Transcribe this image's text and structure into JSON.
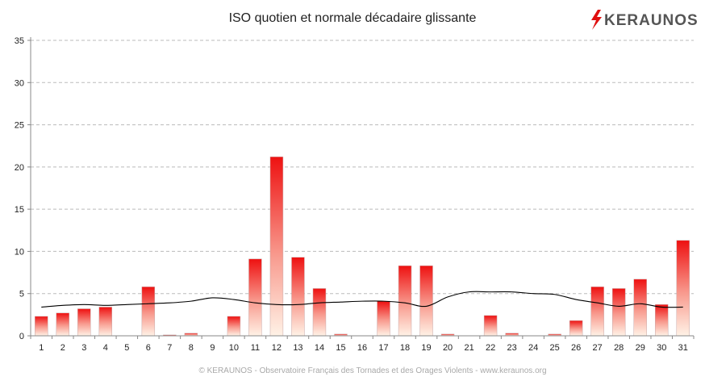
{
  "chart_data": {
    "type": "bar",
    "title": "ISO quotien et normale décadaire glissante",
    "xlabel": "",
    "ylabel": "",
    "categories": [
      "1",
      "2",
      "3",
      "4",
      "5",
      "6",
      "7",
      "8",
      "9",
      "10",
      "11",
      "12",
      "13",
      "14",
      "15",
      "16",
      "17",
      "18",
      "19",
      "20",
      "21",
      "22",
      "23",
      "24",
      "25",
      "26",
      "27",
      "28",
      "29",
      "30",
      "31"
    ],
    "series": [
      {
        "type": "bar",
        "values": [
          2.3,
          2.7,
          3.2,
          3.4,
          0,
          5.8,
          0.1,
          0.3,
          0,
          2.3,
          9.1,
          21.2,
          9.3,
          5.6,
          0.2,
          0,
          4.1,
          8.3,
          8.3,
          0.2,
          0,
          2.4,
          0.3,
          0,
          0.2,
          1.8,
          5.8,
          5.6,
          6.7,
          3.7,
          11.3
        ],
        "color": "#ee1111"
      },
      {
        "type": "line",
        "values": [
          3.4,
          3.6,
          3.7,
          3.6,
          3.7,
          3.8,
          3.9,
          4.1,
          4.5,
          4.3,
          3.9,
          3.7,
          3.7,
          3.9,
          4.0,
          4.1,
          4.1,
          3.9,
          3.5,
          4.6,
          5.2,
          5.2,
          5.2,
          5.0,
          4.9,
          4.3,
          3.9,
          3.5,
          3.8,
          3.4,
          3.4
        ],
        "color": "#000000"
      }
    ],
    "ylim": [
      0,
      35
    ],
    "yticks": [
      0,
      5,
      10,
      15,
      20,
      25,
      30,
      35
    ],
    "grid": true,
    "legend": "none"
  },
  "logo": {
    "text": "KERAUNOS",
    "bolt_color": "#e01010"
  },
  "footer": "© KERAUNOS - Observatoire Français des Tornades et des Orages Violents - www.keraunos.org"
}
